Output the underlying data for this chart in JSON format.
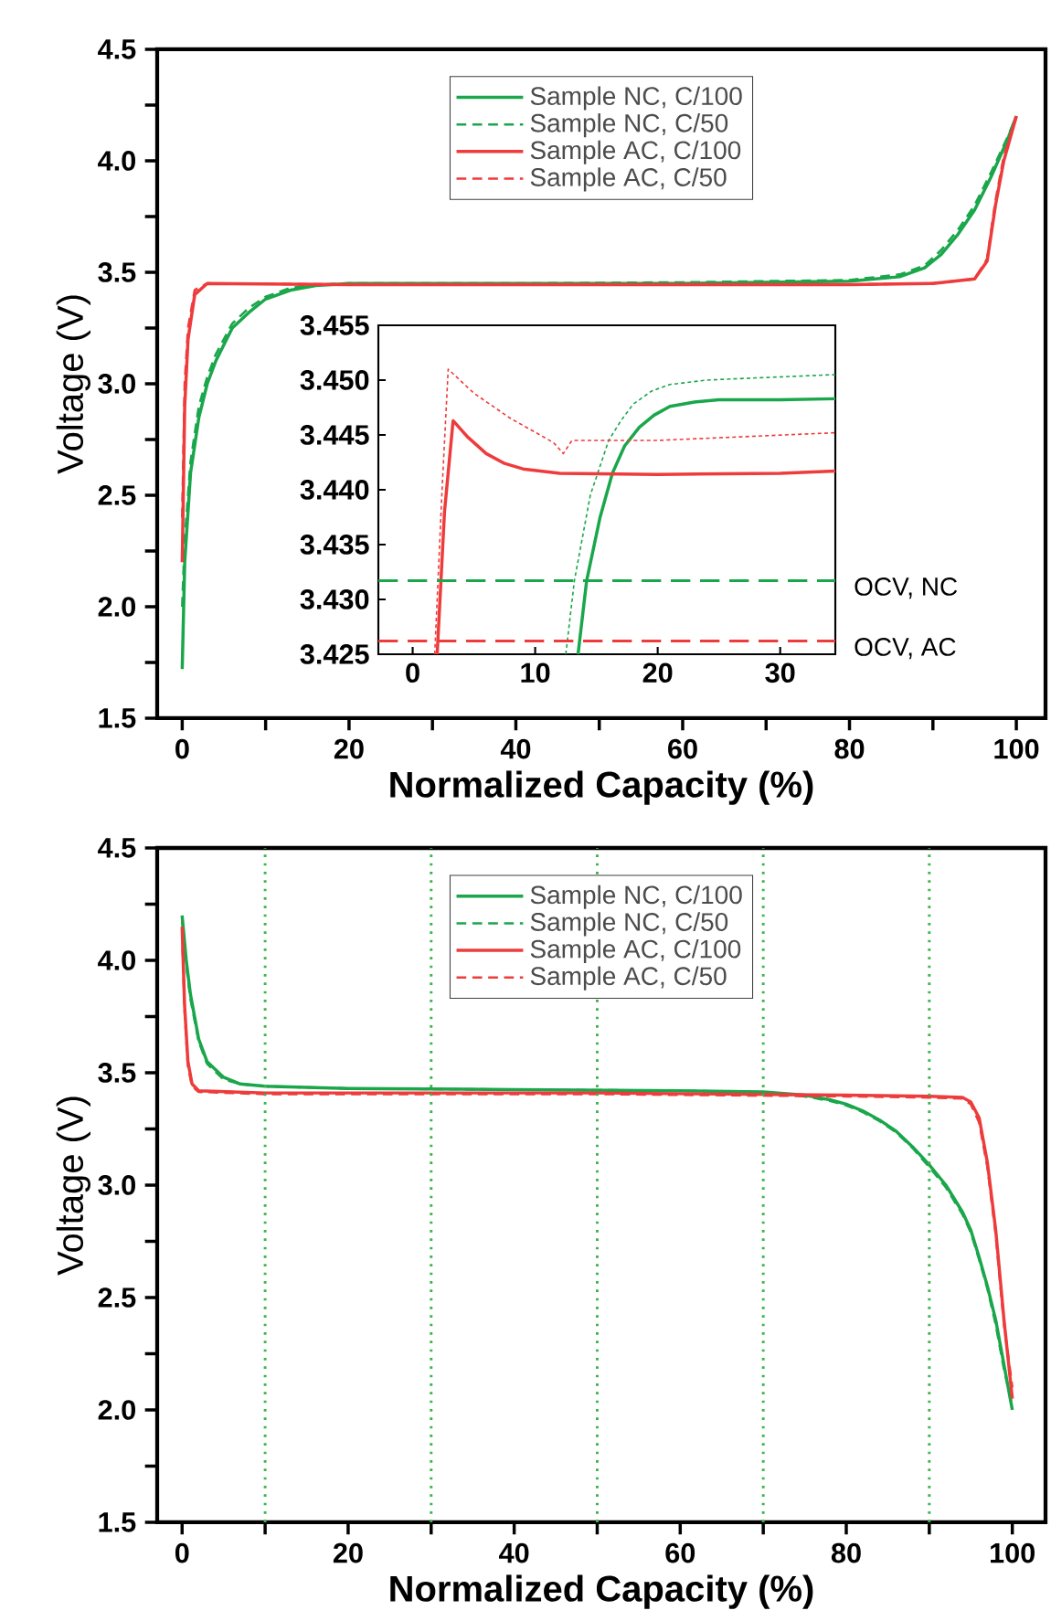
{
  "chart_data": [
    {
      "type": "line",
      "xlabel": "Normalized Capacity (%)",
      "ylabel": "Voltage (V)",
      "xlim": [
        -3,
        103.5
      ],
      "ylim": [
        1.5,
        4.5
      ],
      "xticks": [
        0,
        {
          "value": 10,
          "label": null
        },
        20,
        {
          "value": 30,
          "label": null
        },
        40,
        {
          "value": 50,
          "label": null
        },
        60,
        {
          "value": 70,
          "label": null
        },
        80,
        {
          "value": 90,
          "label": null
        },
        100
      ],
      "yticks": [
        {
          "value": 1.5,
          "label": "1.5"
        },
        {
          "value": 1.75,
          "label": null
        },
        {
          "value": 2,
          "label": "2.0"
        },
        {
          "value": 2.25,
          "label": null
        },
        {
          "value": 2.5,
          "label": "2.5"
        },
        {
          "value": 2.75,
          "label": null
        },
        {
          "value": 3,
          "label": "3.0"
        },
        {
          "value": 3.25,
          "label": null
        },
        {
          "value": 3.5,
          "label": "3.5"
        },
        {
          "value": 3.75,
          "label": null
        },
        {
          "value": 4,
          "label": "4.0"
        },
        {
          "value": 4.25,
          "label": null
        },
        {
          "value": 4.5,
          "label": "4.5"
        }
      ],
      "legend": "top",
      "marker": "none",
      "series": [
        {
          "name": "Sample NC, C/100",
          "color": "#1aa64a",
          "line_style": "solid",
          "x": [
            0,
            0.3,
            1,
            2,
            3,
            4,
            6,
            8,
            10,
            13,
            16,
            20,
            40,
            60,
            80,
            86,
            89,
            91,
            93,
            95,
            97,
            99,
            100
          ],
          "values": [
            1.72,
            2.2,
            2.6,
            2.85,
            3.0,
            3.1,
            3.25,
            3.32,
            3.38,
            3.42,
            3.44,
            3.45,
            3.45,
            3.45,
            3.46,
            3.48,
            3.52,
            3.58,
            3.67,
            3.78,
            3.93,
            4.1,
            4.2
          ]
        },
        {
          "name": "Sample NC, C/50",
          "color": "#1aa64a",
          "line_style": "dashed",
          "x": [
            0,
            0.3,
            1,
            2,
            3,
            4,
            6,
            8,
            10,
            13,
            16,
            20,
            40,
            60,
            80,
            86,
            89,
            91,
            93,
            95,
            97,
            99,
            100
          ],
          "values": [
            2.0,
            2.3,
            2.65,
            2.9,
            3.03,
            3.13,
            3.27,
            3.34,
            3.39,
            3.43,
            3.445,
            3.45,
            3.45,
            3.455,
            3.465,
            3.49,
            3.53,
            3.6,
            3.69,
            3.8,
            3.95,
            4.11,
            4.2
          ]
        },
        {
          "name": "Sample AC, C/100",
          "color": "#ee3b3b",
          "line_style": "solid",
          "x": [
            0,
            0.3,
            0.7,
            1.5,
            3,
            20,
            60,
            80,
            90,
            95,
            96.5,
            97.5,
            98.5,
            100
          ],
          "values": [
            2.2,
            2.9,
            3.2,
            3.4,
            3.45,
            3.445,
            3.445,
            3.445,
            3.45,
            3.47,
            3.55,
            3.8,
            4.0,
            4.2
          ]
        },
        {
          "name": "Sample AC, C/50",
          "color": "#ee3b3b",
          "line_style": "dashed",
          "x": [
            0,
            0.3,
            0.7,
            1.5,
            3,
            20,
            60,
            80,
            90,
            95,
            96.5,
            97.5,
            98.5,
            100
          ],
          "values": [
            2.4,
            3.0,
            3.25,
            3.42,
            3.45,
            3.445,
            3.445,
            3.445,
            3.45,
            3.47,
            3.56,
            3.82,
            4.02,
            4.2
          ]
        }
      ]
    },
    {
      "type": "line",
      "xlim": [
        -2.8,
        34.5
      ],
      "ylim": [
        3.425,
        3.455
      ],
      "xticks": [
        0,
        10,
        20,
        30
      ],
      "yticks": [
        {
          "value": 3.425,
          "label": "3.425"
        },
        {
          "value": 3.43,
          "label": "3.430"
        },
        {
          "value": 3.435,
          "label": "3.435"
        },
        {
          "value": 3.44,
          "label": "3.440"
        },
        {
          "value": 3.445,
          "label": "3.445"
        },
        {
          "value": 3.45,
          "label": "3.450"
        },
        {
          "value": 3.455,
          "label": "3.455"
        }
      ],
      "marker": "none",
      "ref_lines": [
        {
          "axis": "y",
          "value": 3.4317,
          "label": "OCV, NC",
          "color": "#1aa64a",
          "line_style": "dashed"
        },
        {
          "axis": "y",
          "value": 3.4262,
          "label": "OCV, AC",
          "color": "#ee3b3b",
          "line_style": "dashed"
        }
      ],
      "series": [
        {
          "color": "#1aa64a",
          "line_style": "solid",
          "x": [
            13.5,
            14.2,
            15.3,
            16.3,
            17.3,
            18.5,
            19.7,
            21,
            23,
            25,
            30,
            34.5
          ],
          "values": [
            3.425,
            3.4317,
            3.4375,
            3.4415,
            3.444,
            3.4457,
            3.4468,
            3.4476,
            3.448,
            3.4482,
            3.4482,
            3.4483
          ]
        },
        {
          "color": "#1aa64a",
          "line_style": "dotted",
          "x": [
            12.5,
            13.2,
            14.5,
            16,
            17,
            18,
            19.5,
            21,
            24,
            28,
            34.5
          ],
          "values": [
            3.425,
            3.4317,
            3.4395,
            3.4445,
            3.4463,
            3.4478,
            3.449,
            3.4496,
            3.45,
            3.4502,
            3.4505
          ]
        },
        {
          "color": "#ee3b3b",
          "line_style": "solid",
          "x": [
            2.0,
            2.6,
            3.3,
            4.5,
            6,
            7.5,
            9,
            12,
            20,
            30,
            34.5
          ],
          "values": [
            3.425,
            3.438,
            3.4463,
            3.4448,
            3.4433,
            3.4424,
            3.4419,
            3.4415,
            3.4414,
            3.4415,
            3.4417
          ]
        },
        {
          "color": "#ee3b3b",
          "line_style": "dotted",
          "x": [
            1.8,
            2.4,
            2.9,
            5,
            8,
            11.5,
            12.3,
            13,
            20,
            34.5
          ],
          "values": [
            3.425,
            3.44,
            3.451,
            3.4488,
            3.4465,
            3.4443,
            3.4433,
            3.4445,
            3.4445,
            3.4452
          ]
        }
      ]
    },
    {
      "type": "line",
      "xlabel": "Normalized Capacity (%)",
      "ylabel": "Voltage (V)",
      "xlim": [
        -3,
        104
      ],
      "ylim": [
        1.5,
        4.5
      ],
      "xticks": [
        0,
        {
          "value": 10,
          "label": null
        },
        20,
        {
          "value": 30,
          "label": null
        },
        40,
        {
          "value": 50,
          "label": null
        },
        60,
        {
          "value": 70,
          "label": null
        },
        80,
        {
          "value": 90,
          "label": null
        },
        100
      ],
      "yticks": [
        {
          "value": 1.5,
          "label": "1.5"
        },
        {
          "value": 1.75,
          "label": null
        },
        {
          "value": 2,
          "label": "2.0"
        },
        {
          "value": 2.25,
          "label": null
        },
        {
          "value": 2.5,
          "label": "2.5"
        },
        {
          "value": 2.75,
          "label": null
        },
        {
          "value": 3,
          "label": "3.0"
        },
        {
          "value": 3.25,
          "label": null
        },
        {
          "value": 3.5,
          "label": "3.5"
        },
        {
          "value": 3.75,
          "label": null
        },
        {
          "value": 4,
          "label": "4.0"
        },
        {
          "value": 4.25,
          "label": null
        },
        {
          "value": 4.5,
          "label": "4.5"
        }
      ],
      "legend": "top",
      "marker": "none",
      "ref_lines": [
        {
          "axis": "x",
          "value": 10,
          "color": "#3cb44b",
          "line_style": "dotted"
        },
        {
          "axis": "x",
          "value": 30,
          "color": "#3cb44b",
          "line_style": "dotted"
        },
        {
          "axis": "x",
          "value": 50,
          "color": "#3cb44b",
          "line_style": "dotted"
        },
        {
          "axis": "x",
          "value": 70,
          "color": "#3cb44b",
          "line_style": "dotted"
        },
        {
          "axis": "x",
          "value": 90,
          "color": "#3cb44b",
          "line_style": "dotted"
        }
      ],
      "series": [
        {
          "name": "Sample NC, C/100",
          "color": "#1aa64a",
          "line_style": "solid",
          "x": [
            0,
            0.5,
            1,
            2,
            3,
            5,
            7,
            10,
            20,
            40,
            60,
            70,
            75,
            78,
            80,
            82,
            84,
            86,
            88,
            90,
            92,
            94,
            95,
            96,
            97,
            98,
            99,
            100
          ],
          "values": [
            4.2,
            4.0,
            3.85,
            3.65,
            3.55,
            3.48,
            3.45,
            3.44,
            3.43,
            3.425,
            3.42,
            3.415,
            3.4,
            3.38,
            3.36,
            3.33,
            3.29,
            3.24,
            3.17,
            3.09,
            3.0,
            2.88,
            2.8,
            2.68,
            2.55,
            2.4,
            2.2,
            2.0
          ]
        },
        {
          "name": "Sample NC, C/50",
          "color": "#1aa64a",
          "line_style": "dashed",
          "x": [
            0,
            0.5,
            1,
            2,
            3,
            5,
            7,
            10,
            20,
            40,
            60,
            70,
            75,
            78,
            80,
            82,
            84,
            86,
            88,
            90,
            92,
            94,
            95,
            96,
            97,
            98,
            99,
            100
          ],
          "values": [
            4.18,
            3.98,
            3.83,
            3.64,
            3.54,
            3.47,
            3.45,
            3.44,
            3.43,
            3.425,
            3.42,
            3.413,
            3.395,
            3.375,
            3.355,
            3.325,
            3.285,
            3.235,
            3.165,
            3.08,
            2.99,
            2.87,
            2.79,
            2.67,
            2.54,
            2.38,
            2.18,
            2.02
          ]
        },
        {
          "name": "Sample AC, C/100",
          "color": "#ee3b3b",
          "line_style": "solid",
          "x": [
            0,
            0.3,
            0.7,
            1.2,
            2,
            10,
            50,
            80,
            90,
            94,
            95,
            96,
            97,
            98,
            99,
            100
          ],
          "values": [
            4.15,
            3.8,
            3.55,
            3.45,
            3.42,
            3.41,
            3.41,
            3.4,
            3.395,
            3.39,
            3.37,
            3.3,
            3.1,
            2.8,
            2.4,
            2.05
          ]
        },
        {
          "name": "Sample AC, C/50",
          "color": "#ee3b3b",
          "line_style": "dashed",
          "x": [
            0,
            0.3,
            0.7,
            1.2,
            2,
            10,
            50,
            80,
            90,
            94,
            95,
            96,
            97,
            98,
            99,
            100
          ],
          "values": [
            4.13,
            3.78,
            3.53,
            3.44,
            3.415,
            3.405,
            3.405,
            3.395,
            3.39,
            3.385,
            3.36,
            3.28,
            3.08,
            2.78,
            2.38,
            2.1
          ]
        }
      ]
    }
  ]
}
